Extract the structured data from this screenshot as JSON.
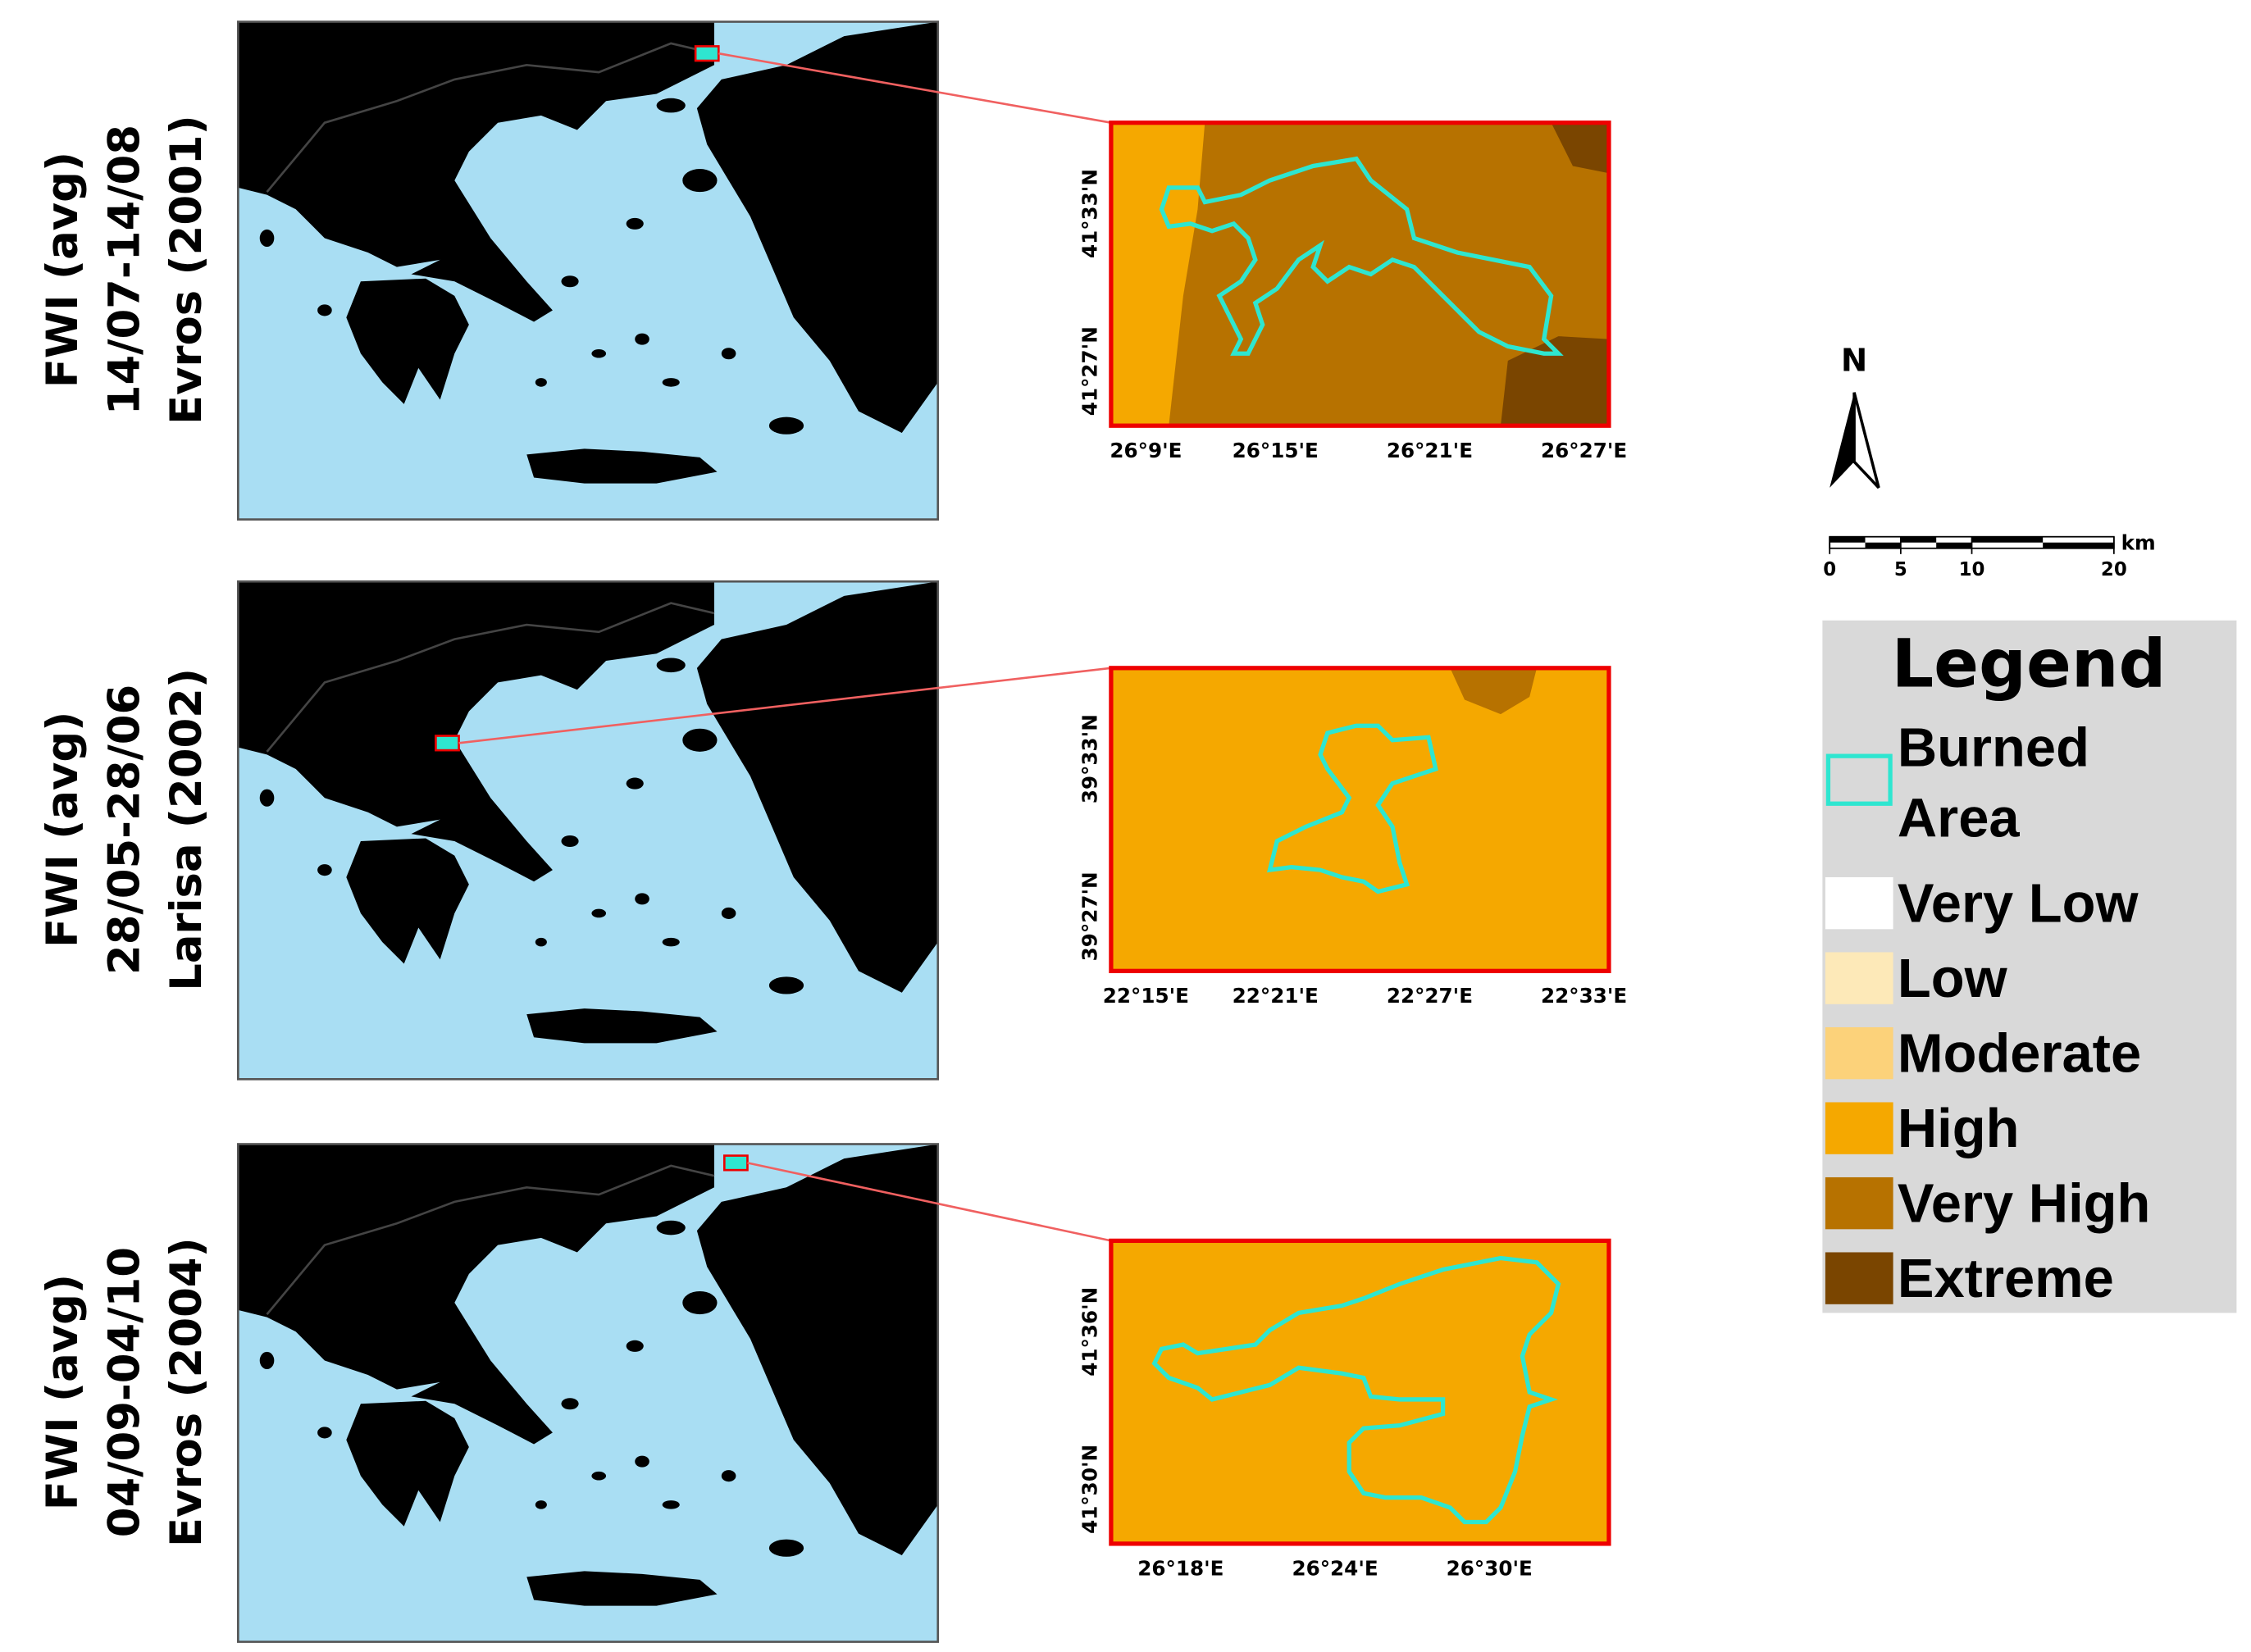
{
  "panels": [
    {
      "label": [
        "FWI (avg)",
        "14/07-14/08",
        "Evros (2001)"
      ],
      "inset": {
        "xticks": [
          "26°9'E",
          "26°15'E",
          "26°21'E",
          "26°27'E"
        ],
        "yticks": [
          "41°33'N",
          "41°27'N"
        ]
      }
    },
    {
      "label": [
        "FWI (avg)",
        "28/05-28/06",
        "Larisa (2002)"
      ],
      "inset": {
        "xticks": [
          "22°15'E",
          "22°21'E",
          "22°27'E",
          "22°33'E"
        ],
        "yticks": [
          "39°33'N",
          "39°27'N"
        ]
      }
    },
    {
      "label": [
        "FWI (avg)",
        "04/09-04/10",
        "Evros (2004)"
      ],
      "inset": {
        "xticks": [
          "26°18'E",
          "26°24'E",
          "26°30'E"
        ],
        "yticks": [
          "41°36'N",
          "41°30'N"
        ]
      }
    }
  ],
  "north": "N",
  "scale_bar": {
    "unit": "km",
    "ticks": [
      0,
      5,
      10,
      20
    ]
  },
  "legend": {
    "title": "Legend",
    "items": [
      {
        "label": "Burned Area",
        "color": "#2ee6d0"
      },
      {
        "label": "Very Low",
        "color": "#ffffff"
      },
      {
        "label": "Low",
        "color": "#fde9b8"
      },
      {
        "label": "Moderate",
        "color": "#fcd27a"
      },
      {
        "label": "High",
        "color": "#f5a800"
      },
      {
        "label": "Very High",
        "color": "#b77200"
      },
      {
        "label": "Extreme",
        "color": "#7a4500"
      }
    ]
  }
}
